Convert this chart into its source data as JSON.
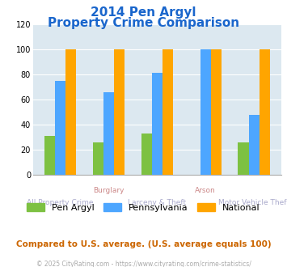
{
  "title_line1": "2014 Pen Argyl",
  "title_line2": "Property Crime Comparison",
  "categories": [
    "All Property Crime",
    "Burglary",
    "Larceny & Theft",
    "Arson",
    "Motor Vehicle Theft"
  ],
  "top_labels": [
    "",
    "Burglary",
    "",
    "Arson",
    ""
  ],
  "bottom_labels": [
    "All Property Crime",
    "",
    "Larceny & Theft",
    "",
    "Motor Vehicle Theft"
  ],
  "pen_argyl": [
    31,
    26,
    33,
    0,
    26
  ],
  "pennsylvania": [
    75,
    66,
    81,
    100,
    48
  ],
  "national": [
    100,
    100,
    100,
    100,
    100
  ],
  "color_pen_argyl": "#7dc142",
  "color_pennsylvania": "#4da6ff",
  "color_national": "#ffa500",
  "color_title": "#1a66cc",
  "color_bg_plot": "#dce8f0",
  "color_footnote": "#cc6600",
  "color_copyright": "#aaaaaa",
  "color_xlabel_top": "#cc8888",
  "color_xlabel_bot": "#aaaacc",
  "ylim": [
    0,
    120
  ],
  "yticks": [
    0,
    20,
    40,
    60,
    80,
    100,
    120
  ],
  "footnote": "Compared to U.S. average. (U.S. average equals 100)",
  "copyright": "© 2025 CityRating.com - https://www.cityrating.com/crime-statistics/",
  "legend_labels": [
    "Pen Argyl",
    "Pennsylvania",
    "National"
  ],
  "bar_width": 0.22
}
